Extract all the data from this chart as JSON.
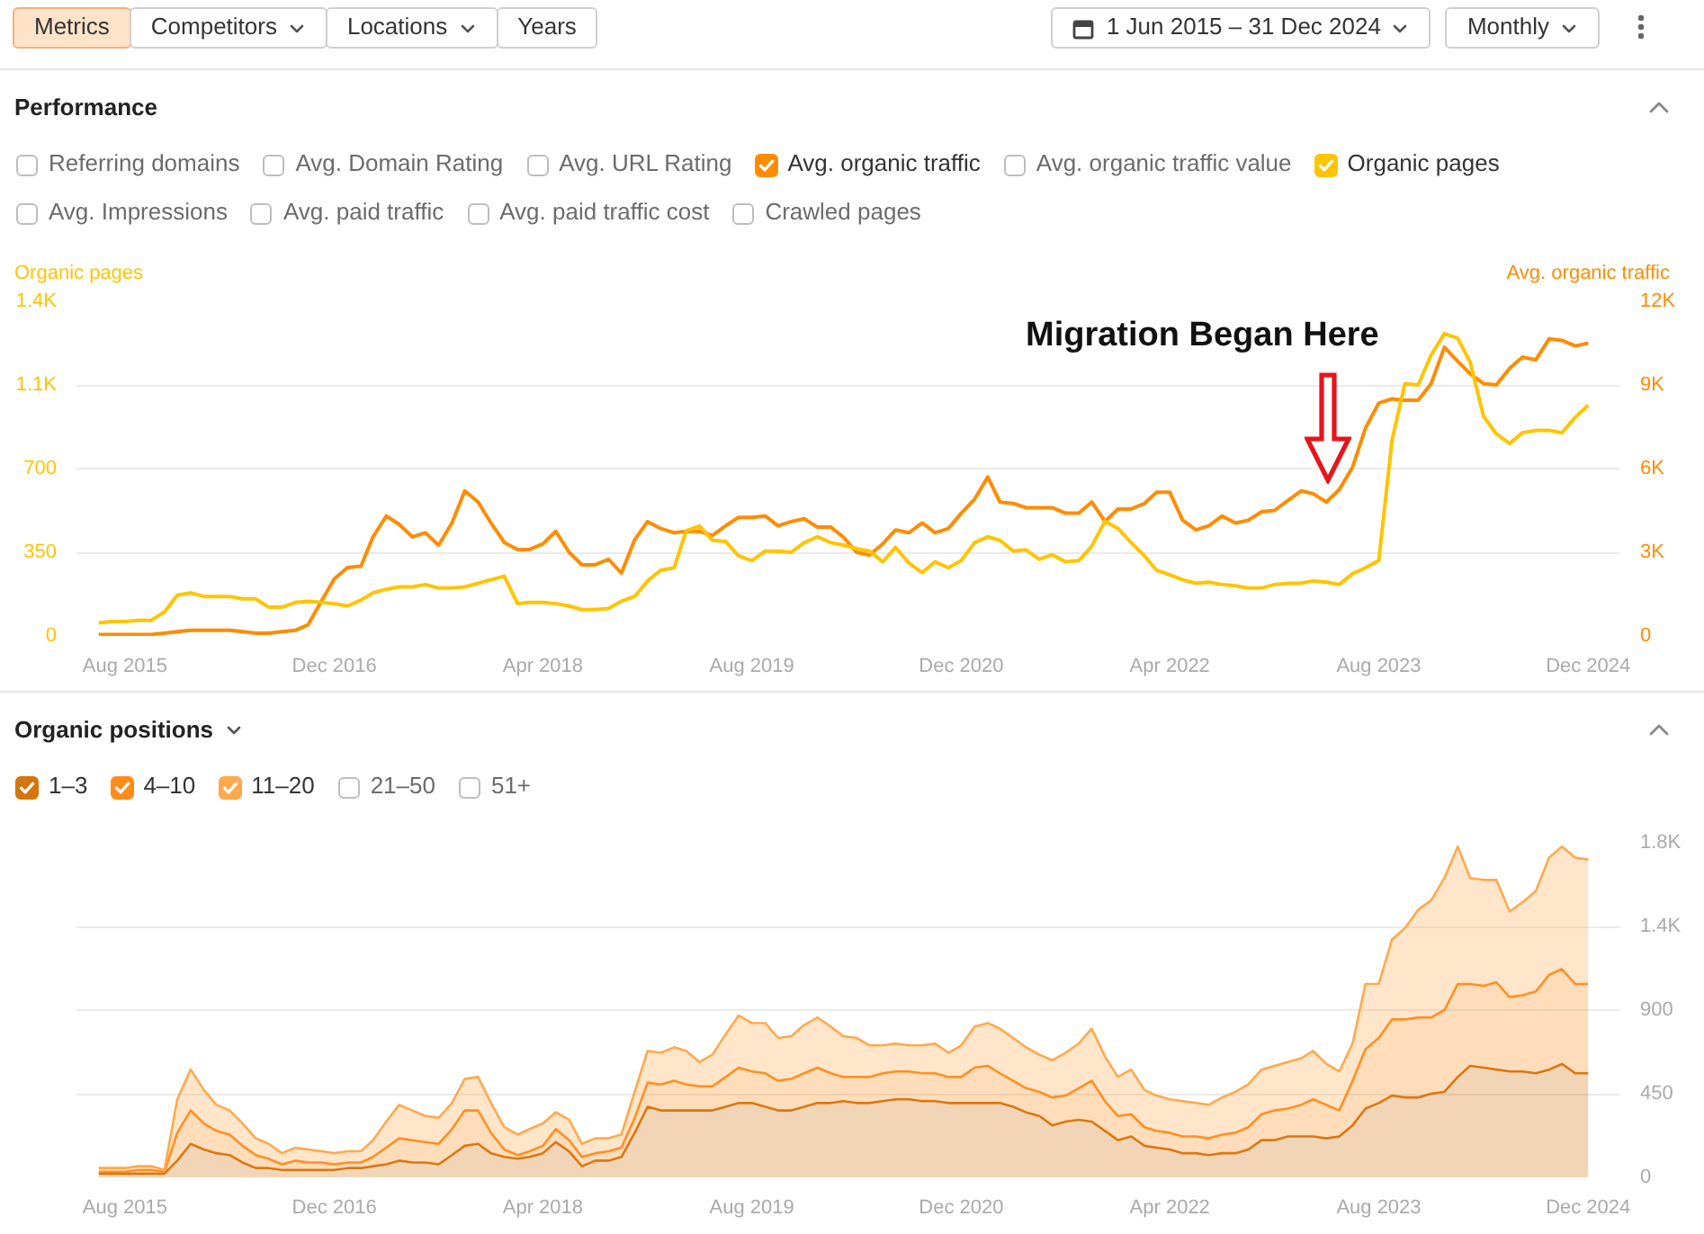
{
  "chart_data": [
    {
      "type": "other",
      "annotations": [
        "Metrics",
        "Competitors",
        "Locations",
        "Years",
        "1 Jun 2015 – 31 Dec 2024",
        "Monthly"
      ]
    },
    {
      "type": "line",
      "title": "Performance",
      "ylabel": "Organic pages",
      "y2label": "Avg. organic traffic",
      "x": [
        "2015-06",
        "2015-07",
        "2015-08",
        "2015-09",
        "2015-10",
        "2015-11",
        "2015-12",
        "2016-01",
        "2016-02",
        "2016-03",
        "2016-04",
        "2016-05",
        "2016-06",
        "2016-07",
        "2016-08",
        "2016-09",
        "2016-10",
        "2016-11",
        "2016-12",
        "2017-01",
        "2017-02",
        "2017-03",
        "2017-04",
        "2017-05",
        "2017-06",
        "2017-07",
        "2017-08",
        "2017-09",
        "2017-10",
        "2017-11",
        "2017-12",
        "2018-01",
        "2018-02",
        "2018-03",
        "2018-04",
        "2018-05",
        "2018-06",
        "2018-07",
        "2018-08",
        "2018-09",
        "2018-10",
        "2018-11",
        "2018-12",
        "2019-01",
        "2019-02",
        "2019-03",
        "2019-04",
        "2019-05",
        "2019-06",
        "2019-07",
        "2019-08",
        "2019-09",
        "2019-10",
        "2019-11",
        "2019-12",
        "2020-01",
        "2020-02",
        "2020-03",
        "2020-04",
        "2020-05",
        "2020-06",
        "2020-07",
        "2020-08",
        "2020-09",
        "2020-10",
        "2020-11",
        "2020-12",
        "2021-01",
        "2021-02",
        "2021-03",
        "2021-04",
        "2021-05",
        "2021-06",
        "2021-07",
        "2021-08",
        "2021-09",
        "2021-10",
        "2021-11",
        "2021-12",
        "2022-01",
        "2022-02",
        "2022-03",
        "2022-04",
        "2022-05",
        "2022-06",
        "2022-07",
        "2022-08",
        "2022-09",
        "2022-10",
        "2022-11",
        "2022-12",
        "2023-01",
        "2023-02",
        "2023-03",
        "2023-04",
        "2023-05",
        "2023-06",
        "2023-07",
        "2023-08",
        "2023-09",
        "2023-10",
        "2023-11",
        "2023-12",
        "2024-01",
        "2024-02",
        "2024-03",
        "2024-04",
        "2024-05",
        "2024-06",
        "2024-07",
        "2024-08",
        "2024-09",
        "2024-10",
        "2024-11",
        "2024-12"
      ],
      "series": [
        {
          "name": "Avg. organic traffic",
          "color": "#ff8c00",
          "axis": "y2",
          "values": [
            50,
            50,
            50,
            50,
            50,
            100,
            150,
            200,
            200,
            200,
            200,
            150,
            100,
            100,
            150,
            200,
            400,
            1250,
            2050,
            2450,
            2500,
            3550,
            4300,
            4000,
            3550,
            3700,
            3250,
            4050,
            5200,
            4800,
            4050,
            3350,
            3100,
            3100,
            3300,
            3750,
            3000,
            2550,
            2550,
            2750,
            2250,
            3450,
            4100,
            3850,
            3700,
            3750,
            3750,
            3600,
            3950,
            4250,
            4250,
            4300,
            3950,
            4100,
            4200,
            3900,
            3900,
            3550,
            3000,
            2900,
            3300,
            3800,
            3700,
            4050,
            3700,
            3850,
            4400,
            4900,
            5700,
            4800,
            4750,
            4600,
            4600,
            4600,
            4400,
            4400,
            4800,
            4100,
            4550,
            4550,
            4750,
            5150,
            5150,
            4150,
            3800,
            3950,
            4300,
            4050,
            4150,
            4450,
            4500,
            4850,
            5200,
            5100,
            4800,
            5250,
            6050,
            7450,
            8350,
            8500,
            8450,
            8450,
            9050,
            10350,
            9850,
            9400,
            9050,
            9000,
            9600,
            10000,
            9900,
            10650,
            10600,
            10400,
            10500
          ]
        },
        {
          "name": "Organic pages",
          "color": "#ffc400",
          "values": [
            55,
            60,
            60,
            65,
            65,
            100,
            170,
            180,
            165,
            165,
            165,
            155,
            155,
            120,
            120,
            140,
            145,
            140,
            135,
            125,
            150,
            180,
            195,
            205,
            205,
            215,
            200,
            200,
            205,
            220,
            235,
            250,
            135,
            140,
            140,
            135,
            125,
            110,
            110,
            115,
            145,
            165,
            230,
            275,
            285,
            440,
            460,
            400,
            395,
            335,
            315,
            355,
            355,
            350,
            390,
            415,
            390,
            380,
            365,
            355,
            310,
            370,
            305,
            265,
            310,
            285,
            315,
            390,
            415,
            400,
            355,
            360,
            320,
            340,
            310,
            315,
            375,
            480,
            450,
            390,
            335,
            275,
            255,
            235,
            220,
            225,
            215,
            210,
            200,
            200,
            215,
            220,
            220,
            230,
            225,
            215,
            260,
            285,
            315,
            820,
            1055,
            1050,
            1175,
            1265,
            1245,
            1145,
            920,
            845,
            805,
            850,
            860,
            860,
            850,
            915,
            965
          ]
        }
      ],
      "xlim": [
        "2015-04-10",
        "2025-02-14"
      ],
      "xticks": [
        {
          "value": "2015-08",
          "label": "Aug 2015"
        },
        {
          "value": "2016-12",
          "label": "Dec 2016"
        },
        {
          "value": "2018-04",
          "label": "Apr 2018"
        },
        {
          "value": "2019-08",
          "label": "Aug 2019"
        },
        {
          "value": "2020-12",
          "label": "Dec 2020"
        },
        {
          "value": "2022-04",
          "label": "Apr 2022"
        },
        {
          "value": "2023-08",
          "label": "Aug 2023"
        },
        {
          "value": "2024-12",
          "label": "Dec 2024"
        }
      ],
      "ylim": [
        0,
        1400
      ],
      "yticks": [
        0,
        350,
        700,
        {
          "value": 1050,
          "label": "1.1K"
        },
        {
          "value": 1400,
          "label": "1.4K"
        }
      ],
      "y2lim": [
        0,
        12000
      ],
      "y2ticks": [
        0,
        {
          "value": 3000,
          "label": "3K"
        },
        {
          "value": 6000,
          "label": "6K"
        },
        {
          "value": 9000,
          "label": "9K"
        },
        {
          "value": 12000,
          "label": "12K"
        }
      ],
      "grid": "y",
      "legend": "top",
      "annotations": [
        "Referring domains",
        "Avg. Domain Rating",
        "Avg. URL Rating",
        "Avg. organic traffic value",
        "Avg. Impressions",
        "Avg. paid traffic",
        "Avg. paid traffic cost",
        "Crawled pages",
        "Migration Began Here"
      ]
    },
    {
      "type": "area",
      "title": "Organic positions",
      "stacked": true,
      "x": [
        "2015-06",
        "2015-07",
        "2015-08",
        "2015-09",
        "2015-10",
        "2015-11",
        "2015-12",
        "2016-01",
        "2016-02",
        "2016-03",
        "2016-04",
        "2016-05",
        "2016-06",
        "2016-07",
        "2016-08",
        "2016-09",
        "2016-10",
        "2016-11",
        "2016-12",
        "2017-01",
        "2017-02",
        "2017-03",
        "2017-04",
        "2017-05",
        "2017-06",
        "2017-07",
        "2017-08",
        "2017-09",
        "2017-10",
        "2017-11",
        "2017-12",
        "2018-01",
        "2018-02",
        "2018-03",
        "2018-04",
        "2018-05",
        "2018-06",
        "2018-07",
        "2018-08",
        "2018-09",
        "2018-10",
        "2018-11",
        "2018-12",
        "2019-01",
        "2019-02",
        "2019-03",
        "2019-04",
        "2019-05",
        "2019-06",
        "2019-07",
        "2019-08",
        "2019-09",
        "2019-10",
        "2019-11",
        "2019-12",
        "2020-01",
        "2020-02",
        "2020-03",
        "2020-04",
        "2020-05",
        "2020-06",
        "2020-07",
        "2020-08",
        "2020-09",
        "2020-10",
        "2020-11",
        "2020-12",
        "2021-01",
        "2021-02",
        "2021-03",
        "2021-04",
        "2021-05",
        "2021-06",
        "2021-07",
        "2021-08",
        "2021-09",
        "2021-10",
        "2021-11",
        "2021-12",
        "2022-01",
        "2022-02",
        "2022-03",
        "2022-04",
        "2022-05",
        "2022-06",
        "2022-07",
        "2022-08",
        "2022-09",
        "2022-10",
        "2022-11",
        "2022-12",
        "2023-01",
        "2023-02",
        "2023-03",
        "2023-04",
        "2023-05",
        "2023-06",
        "2023-07",
        "2023-08",
        "2023-09",
        "2023-10",
        "2023-11",
        "2023-12",
        "2024-01",
        "2024-02",
        "2024-03",
        "2024-04",
        "2024-05",
        "2024-06",
        "2024-07",
        "2024-08",
        "2024-09",
        "2024-10",
        "2024-11",
        "2024-12"
      ],
      "series": [
        {
          "name": "1–3",
          "color": "#d4750f",
          "axis": "y2",
          "values": [
            20,
            20,
            20,
            20,
            20,
            20,
            90,
            180,
            150,
            130,
            120,
            80,
            50,
            50,
            40,
            40,
            40,
            40,
            40,
            50,
            50,
            60,
            70,
            90,
            80,
            80,
            70,
            120,
            170,
            180,
            130,
            110,
            100,
            110,
            130,
            190,
            140,
            60,
            90,
            90,
            110,
            240,
            380,
            360,
            360,
            360,
            360,
            360,
            380,
            400,
            400,
            380,
            360,
            360,
            380,
            400,
            400,
            410,
            400,
            400,
            410,
            420,
            420,
            410,
            410,
            400,
            400,
            400,
            400,
            400,
            380,
            350,
            330,
            280,
            300,
            310,
            300,
            250,
            200,
            220,
            170,
            160,
            150,
            130,
            130,
            120,
            130,
            130,
            150,
            200,
            200,
            220,
            220,
            220,
            210,
            220,
            280,
            370,
            400,
            440,
            430,
            430,
            450,
            460,
            540,
            600,
            590,
            580,
            570,
            570,
            560,
            580,
            610,
            560,
            560
          ]
        },
        {
          "name": "4–10",
          "color": "#ff8c1a",
          "axis": "y2",
          "values": [
            10,
            10,
            10,
            20,
            20,
            10,
            150,
            180,
            140,
            120,
            110,
            90,
            70,
            50,
            30,
            50,
            40,
            40,
            30,
            30,
            30,
            50,
            90,
            120,
            120,
            110,
            110,
            140,
            190,
            180,
            110,
            40,
            20,
            30,
            40,
            70,
            60,
            50,
            40,
            50,
            50,
            80,
            130,
            140,
            160,
            140,
            130,
            130,
            160,
            190,
            170,
            180,
            160,
            170,
            180,
            190,
            160,
            130,
            140,
            140,
            150,
            150,
            150,
            150,
            150,
            140,
            140,
            190,
            200,
            160,
            140,
            130,
            130,
            150,
            140,
            170,
            220,
            160,
            130,
            120,
            100,
            90,
            90,
            90,
            90,
            90,
            100,
            110,
            120,
            140,
            160,
            150,
            170,
            200,
            180,
            140,
            240,
            320,
            350,
            410,
            420,
            430,
            410,
            440,
            500,
            440,
            440,
            470,
            400,
            410,
            440,
            510,
            510,
            480,
            480
          ]
        },
        {
          "name": "11–20",
          "color": "#ffa94d",
          "axis": "y2",
          "values": [
            20,
            20,
            20,
            20,
            20,
            10,
            180,
            220,
            180,
            140,
            130,
            120,
            90,
            80,
            60,
            70,
            70,
            60,
            60,
            60,
            60,
            90,
            140,
            180,
            160,
            140,
            140,
            140,
            170,
            180,
            160,
            120,
            110,
            120,
            120,
            90,
            110,
            70,
            80,
            70,
            70,
            140,
            170,
            170,
            180,
            180,
            130,
            170,
            230,
            280,
            260,
            270,
            230,
            230,
            260,
            270,
            250,
            220,
            210,
            170,
            150,
            150,
            140,
            150,
            160,
            130,
            170,
            220,
            230,
            240,
            230,
            220,
            200,
            200,
            230,
            240,
            280,
            240,
            210,
            240,
            200,
            190,
            180,
            190,
            180,
            180,
            200,
            220,
            230,
            240,
            240,
            250,
            250,
            260,
            220,
            210,
            200,
            350,
            290,
            430,
            490,
            580,
            630,
            710,
            740,
            570,
            570,
            550,
            460,
            500,
            540,
            630,
            660,
            680,
            670
          ]
        }
      ],
      "xlim": [
        "2015-04-10",
        "2025-02-14"
      ],
      "xticks": [
        {
          "value": "2015-08",
          "label": "Aug 2015"
        },
        {
          "value": "2016-12",
          "label": "Dec 2016"
        },
        {
          "value": "2018-04",
          "label": "Apr 2018"
        },
        {
          "value": "2019-08",
          "label": "Aug 2019"
        },
        {
          "value": "2020-12",
          "label": "Dec 2020"
        },
        {
          "value": "2022-04",
          "label": "Apr 2022"
        },
        {
          "value": "2023-08",
          "label": "Aug 2023"
        },
        {
          "value": "2024-12",
          "label": "Dec 2024"
        }
      ],
      "y2lim": [
        0,
        1800
      ],
      "y2ticks": [
        0,
        450,
        900,
        {
          "value": 1350,
          "label": "1.4K"
        },
        {
          "value": 1800,
          "label": "1.8K"
        }
      ],
      "grid": "y",
      "legend": "top",
      "annotations": [
        "21–50",
        "51+"
      ]
    }
  ]
}
